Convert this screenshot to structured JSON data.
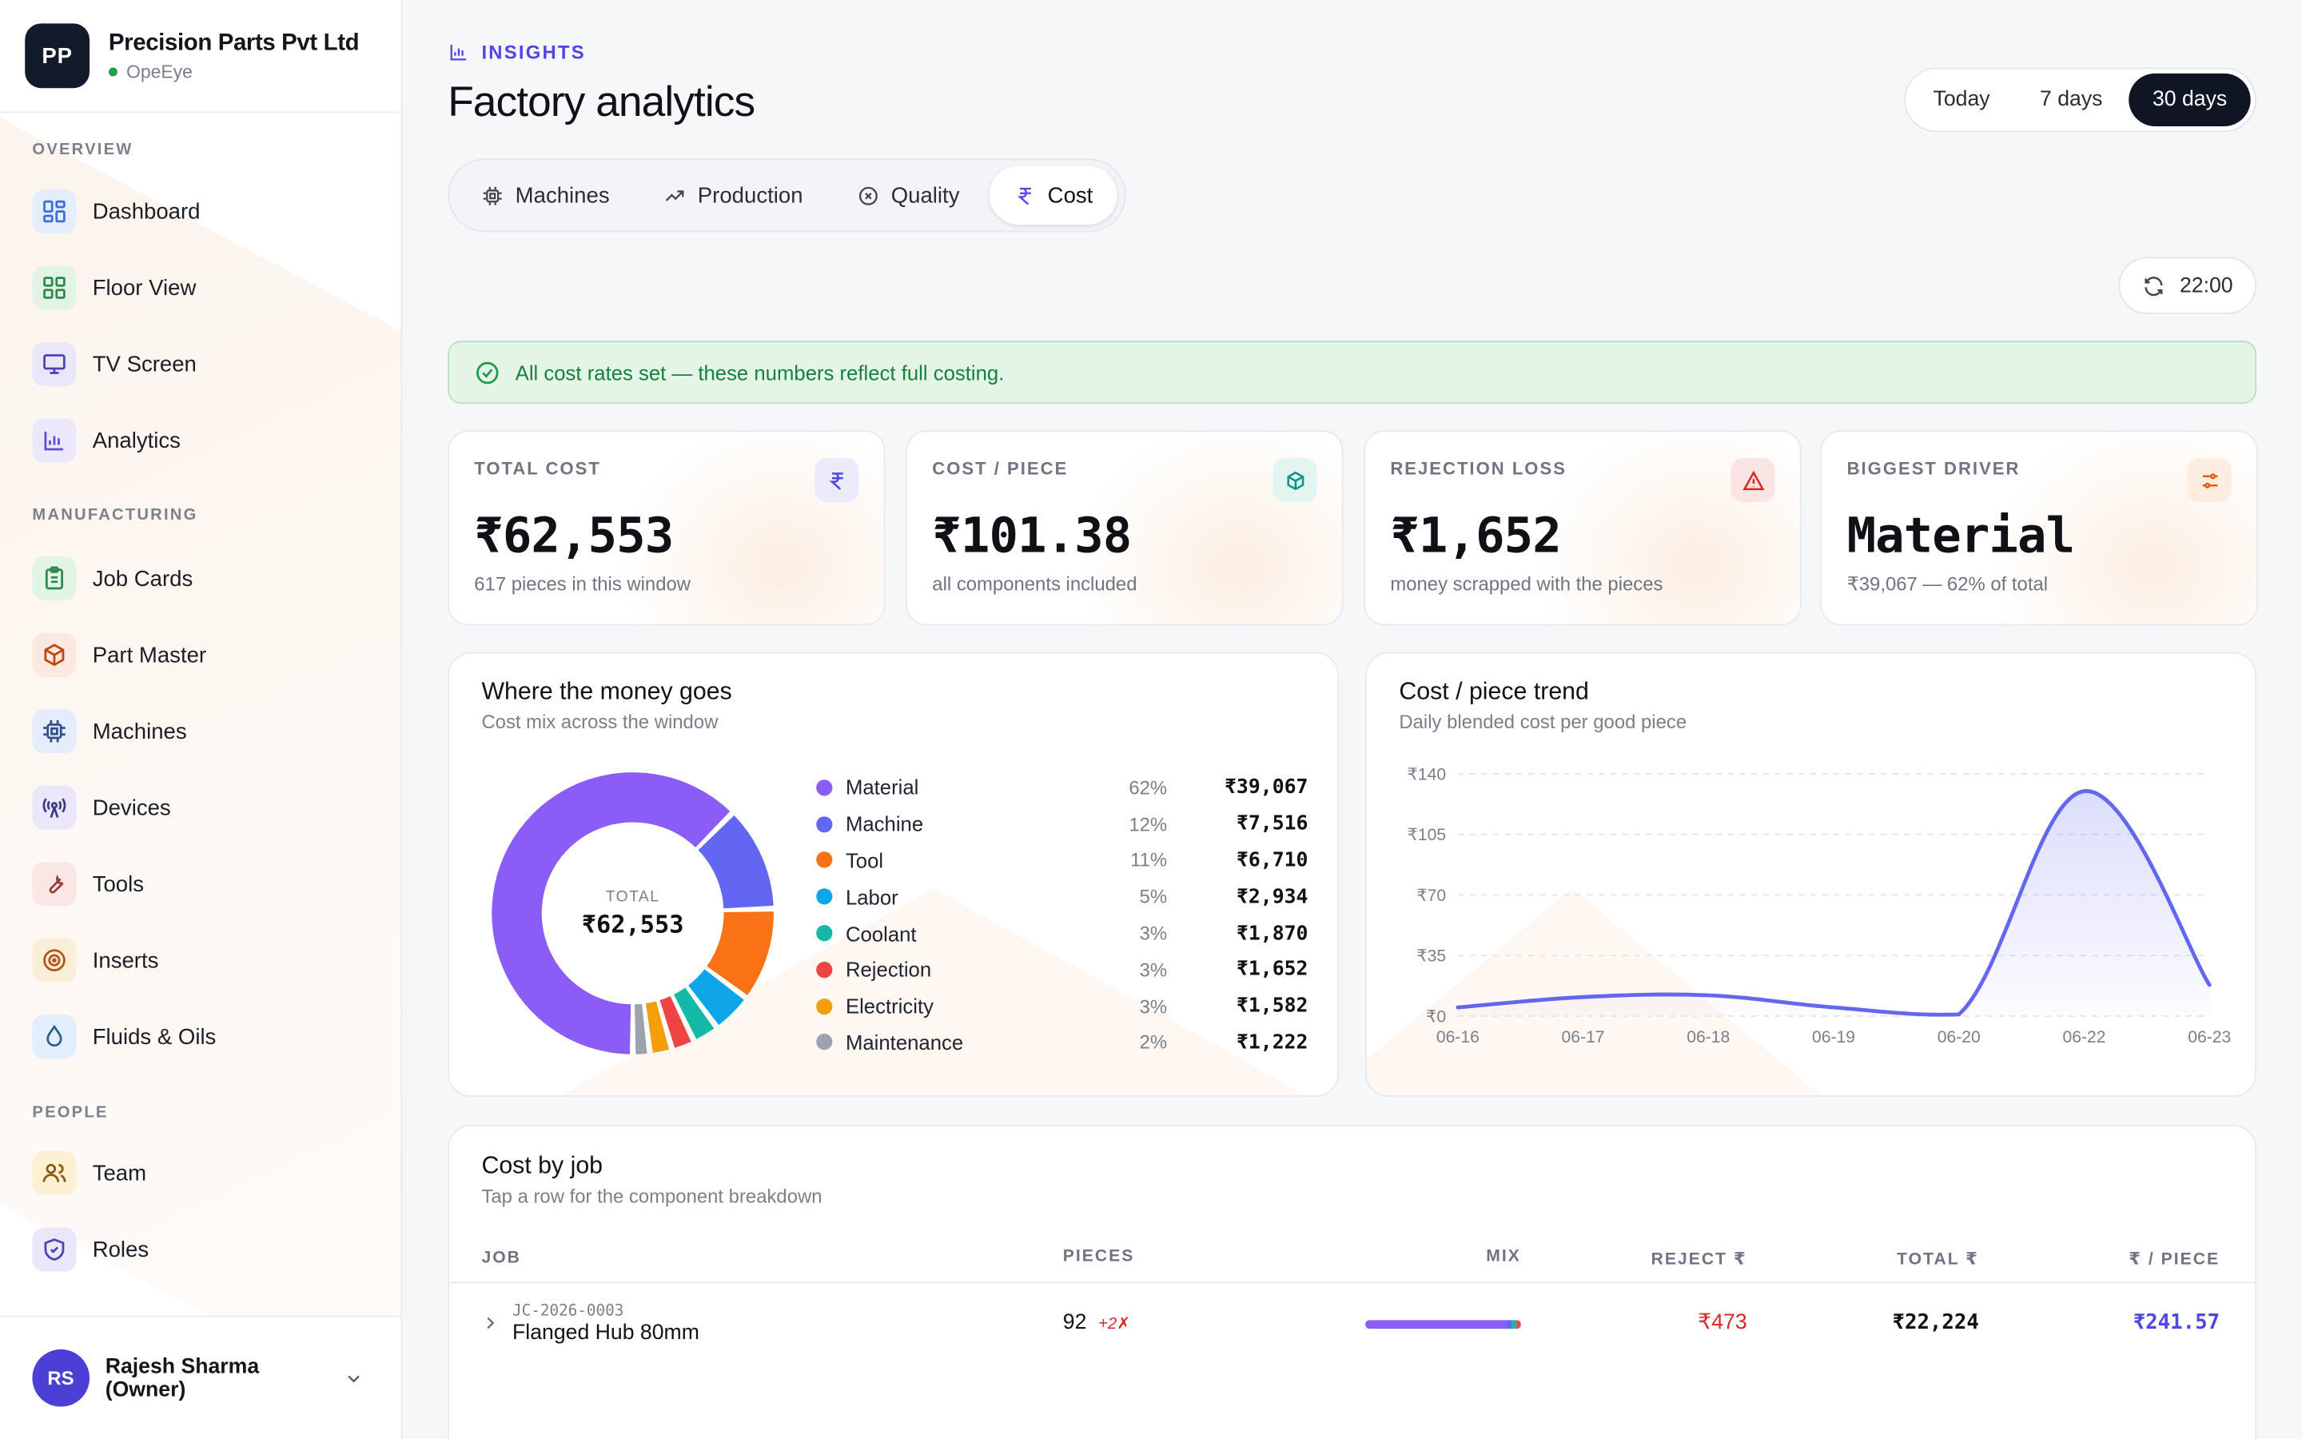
{
  "brand": {
    "initials": "PP",
    "name": "Precision Parts Pvt Ltd",
    "sub": "OpeEye"
  },
  "nav": {
    "overview_label": "OVERVIEW",
    "overview": [
      {
        "label": "Dashboard",
        "icon": "dashboard-icon"
      },
      {
        "label": "Floor View",
        "icon": "grid-icon"
      },
      {
        "label": "TV Screen",
        "icon": "monitor-icon"
      },
      {
        "label": "Analytics",
        "icon": "bar-chart-icon"
      }
    ],
    "manufacturing_label": "MANUFACTURING",
    "manufacturing": [
      {
        "label": "Job Cards",
        "icon": "clipboard-icon"
      },
      {
        "label": "Part Master",
        "icon": "box-icon"
      },
      {
        "label": "Machines",
        "icon": "chip-icon"
      },
      {
        "label": "Devices",
        "icon": "antenna-icon"
      },
      {
        "label": "Tools",
        "icon": "wrench-icon"
      },
      {
        "label": "Inserts",
        "icon": "disc-icon"
      },
      {
        "label": "Fluids & Oils",
        "icon": "droplet-icon"
      }
    ],
    "people_label": "PEOPLE",
    "people": [
      {
        "label": "Team",
        "icon": "users-icon"
      },
      {
        "label": "Roles",
        "icon": "shield-icon"
      }
    ]
  },
  "user": {
    "initials": "RS",
    "name": "Rajesh Sharma (Owner)"
  },
  "header": {
    "eyebrow": "INSIGHTS",
    "title": "Factory analytics"
  },
  "range": {
    "options": [
      "Today",
      "7 days",
      "30 days"
    ],
    "selected": "30 days"
  },
  "tabs": {
    "items": [
      "Machines",
      "Production",
      "Quality",
      "Cost"
    ],
    "selected": "Cost"
  },
  "refresh": {
    "time": "22:00"
  },
  "alert": {
    "text": "All cost rates set — these numbers reflect full costing."
  },
  "kpis": [
    {
      "label": "TOTAL COST",
      "value": "₹62,553",
      "sub": "617 pieces in this window",
      "icon": "rupee-icon",
      "color": "#4f46e5"
    },
    {
      "label": "COST / PIECE",
      "value": "₹101.38",
      "sub": "all components included",
      "icon": "cube-icon",
      "color": "#0d9488"
    },
    {
      "label": "REJECTION LOSS",
      "value": "₹1,652",
      "sub": "money scrapped with the pieces",
      "icon": "alert-triangle-icon",
      "color": "#dc2626"
    },
    {
      "label": "BIGGEST DRIVER",
      "value": "Material",
      "sub": "₹39,067 — 62% of total",
      "icon": "sliders-icon",
      "color": "#ea580c"
    }
  ],
  "cost_mix": {
    "title": "Where the money goes",
    "subtitle": "Cost mix across the window",
    "center_label": "TOTAL",
    "center_value": "₹62,553",
    "items": [
      {
        "name": "Material",
        "pct": "62%",
        "amount": "₹39,067",
        "value": 39067,
        "color": "#8b5cf6"
      },
      {
        "name": "Machine",
        "pct": "12%",
        "amount": "₹7,516",
        "value": 7516,
        "color": "#6366f1"
      },
      {
        "name": "Tool",
        "pct": "11%",
        "amount": "₹6,710",
        "value": 6710,
        "color": "#f97316"
      },
      {
        "name": "Labor",
        "pct": "5%",
        "amount": "₹2,934",
        "value": 2934,
        "color": "#0ea5e9"
      },
      {
        "name": "Coolant",
        "pct": "3%",
        "amount": "₹1,870",
        "value": 1870,
        "color": "#14b8a6"
      },
      {
        "name": "Rejection",
        "pct": "3%",
        "amount": "₹1,652",
        "value": 1652,
        "color": "#ef4444"
      },
      {
        "name": "Electricity",
        "pct": "3%",
        "amount": "₹1,582",
        "value": 1582,
        "color": "#f59e0b"
      },
      {
        "name": "Maintenance",
        "pct": "2%",
        "amount": "₹1,222",
        "value": 1222,
        "color": "#9ca3af"
      }
    ]
  },
  "trend": {
    "title": "Cost / piece trend",
    "subtitle": "Daily blended cost per good piece"
  },
  "chart_data": {
    "type": "area",
    "title": "Cost / piece trend",
    "x": [
      "06-16",
      "06-17",
      "06-18",
      "06-19",
      "06-20",
      "06-22",
      "06-23"
    ],
    "y": [
      5,
      11,
      12,
      5,
      1,
      130,
      18
    ],
    "ylim": [
      0,
      140
    ],
    "yticks": [
      0,
      35,
      70,
      105,
      140
    ],
    "ytick_labels": [
      "₹0",
      "₹35",
      "₹70",
      "₹105",
      "₹140"
    ],
    "grid": true,
    "color": "#6366f1"
  },
  "jobs_table": {
    "title": "Cost by job",
    "subtitle": "Tap a row for the component breakdown",
    "columns": [
      "JOB",
      "PIECES",
      "MIX",
      "REJECT ₹",
      "TOTAL ₹",
      "₹ / PIECE"
    ],
    "rows": [
      {
        "code": "JC-2026-0003",
        "name": "Flanged Hub 80mm",
        "pieces": "92",
        "reject_pieces": "+2✗",
        "reject": "₹473",
        "total": "₹22,224",
        "per_piece": "₹241.57"
      }
    ]
  }
}
